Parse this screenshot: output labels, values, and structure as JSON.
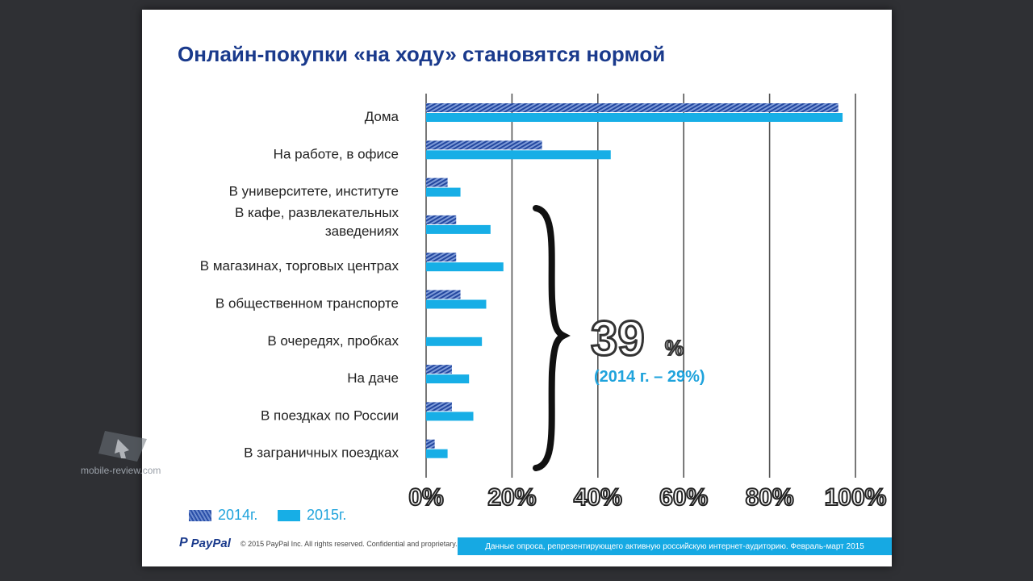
{
  "slide": {
    "title": "Онлайн-покупки «на ходу» становятся нормой",
    "highlight_value": "39",
    "highlight_pct": "%",
    "highlight_note": "(2014 г. – 29%)",
    "legend": [
      {
        "label": "2014г.",
        "color": "#2a4fa8"
      },
      {
        "label": "2015г.",
        "color": "#17aee6"
      }
    ],
    "footer": {
      "logo_mark": "P",
      "logo_text": "PayPal",
      "copyright": "© 2015 PayPal Inc. All rights reserved. Confidential and proprietary.",
      "source": "Данные опроса, репрезентирующего активную российскую интернет-аудиторию. Февраль-март 2015"
    },
    "watermark": "mobile-review.com"
  },
  "chart_data": {
    "type": "bar",
    "orientation": "horizontal",
    "categories": [
      [
        "Дома"
      ],
      [
        "На работе, в офисе"
      ],
      [
        "В университете, институте"
      ],
      [
        "В кафе, развлекательных",
        "заведениях"
      ],
      [
        "В магазинах, торговых центрах"
      ],
      [
        "В общественном транспорте"
      ],
      [
        "В очередях, пробках"
      ],
      [
        "На даче"
      ],
      [
        "В поездках по России"
      ],
      [
        "В заграничных поездках"
      ]
    ],
    "series": [
      {
        "name": "2014г.",
        "color": "#2a4fa8",
        "values": [
          96,
          27,
          5,
          7,
          7,
          8,
          0,
          6,
          6,
          2
        ]
      },
      {
        "name": "2015г.",
        "color": "#17aee6",
        "values": [
          97,
          43,
          8,
          15,
          18,
          14,
          13,
          10,
          11,
          5
        ]
      }
    ],
    "xlim": [
      0,
      100
    ],
    "xticks": [
      "0%",
      "20%",
      "40%",
      "60%",
      "80%",
      "100%"
    ],
    "xtick_values": [
      0,
      20,
      40,
      60,
      80,
      100
    ],
    "grid": true,
    "legend_position": "bottom-left"
  }
}
